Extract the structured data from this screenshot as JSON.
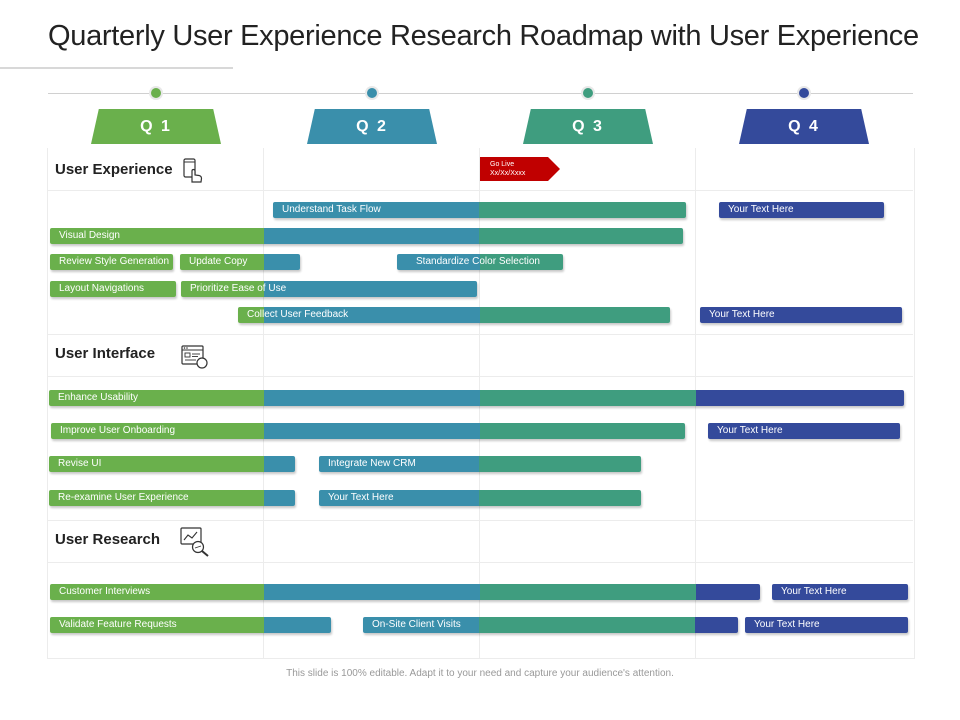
{
  "title": "Quarterly User Experience Research Roadmap with User Experience",
  "footer": "This slide is 100% editable. Adapt it to your need and capture your audience's attention.",
  "colors": {
    "q1": "#6ab04c",
    "q2": "#3a8fab",
    "q3": "#3f9d7f",
    "q4": "#344a9b",
    "golive": "#c00000"
  },
  "quarters": [
    {
      "label": "Q 1"
    },
    {
      "label": "Q 2"
    },
    {
      "label": "Q 3"
    },
    {
      "label": "Q 4"
    }
  ],
  "golive": {
    "line1": "Go Live",
    "line2": "Xx/Xx/Xxxx"
  },
  "sections": [
    {
      "label": "User Experience",
      "icon": "touch-device-icon"
    },
    {
      "label": "User Interface",
      "icon": "browser-window-icon"
    },
    {
      "label": "User Research",
      "icon": "chart-magnifier-icon"
    }
  ],
  "tasks": [
    {
      "label": "Understand Task Flow"
    },
    {
      "label": "Your Text Here"
    },
    {
      "label": "Visual Design"
    },
    {
      "label": "Review Style Generation"
    },
    {
      "label": "Update Copy"
    },
    {
      "label": "Standardize Color Selection"
    },
    {
      "label": "Layout Navigations"
    },
    {
      "label": "Prioritize Ease of Use"
    },
    {
      "label": "Collect User Feedback"
    },
    {
      "label": "Your Text Here"
    },
    {
      "label": "Enhance Usability"
    },
    {
      "label": "Improve User Onboarding"
    },
    {
      "label": "Your Text Here"
    },
    {
      "label": "Revise UI"
    },
    {
      "label": "Integrate New CRM"
    },
    {
      "label": "Re-examine User Experience"
    },
    {
      "label": "Your Text Here"
    },
    {
      "label": "Customer Interviews"
    },
    {
      "label": "Your Text Here"
    },
    {
      "label": "Validate Feature Requests"
    },
    {
      "label": "On-Site Client Visits"
    },
    {
      "label": "Your Text Here"
    }
  ]
}
